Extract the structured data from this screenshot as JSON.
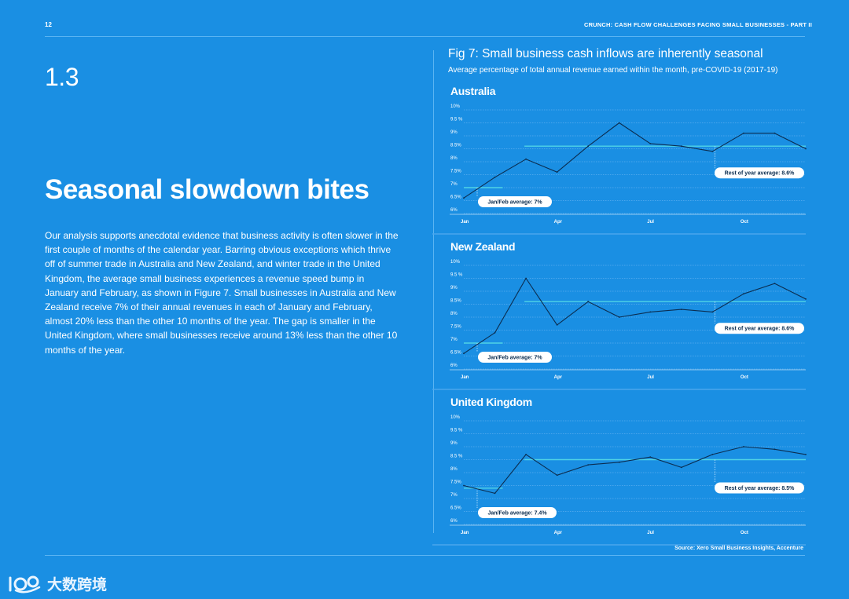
{
  "header": {
    "page_number": "12",
    "running_title": "CRUNCH: CASH FLOW CHALLENGES FACING SMALL BUSINESSES - PART II"
  },
  "section": {
    "number": "1.3",
    "headline": "Seasonal slowdown bites",
    "body": "Our analysis supports anecdotal evidence that business activity is often slower in the first couple of months of the calendar year. Barring obvious exceptions which thrive off of summer trade in Australia and New Zealand, and winter trade in the United Kingdom, the average small business experiences a revenue speed bump in January and February, as shown in Figure 7. Small businesses in Australia and New Zealand receive 7% of their annual revenues in each of January and February, almost 20% less than the other 10 months of the year. The gap is smaller in the United Kingdom, where small businesses receive around 13% less than the other 10 months of the year."
  },
  "figure": {
    "title": "Fig 7: Small business cash inflows are inherently seasonal",
    "subtitle": "Average percentage of total annual revenue earned within the month, pre-COVID-19 (2017-19)",
    "source": "Source: Xero Small Business Insights, Accenture"
  },
  "colors": {
    "background": "#1a8fe3",
    "line": "#0b2d50",
    "avg_line": "#4fd3e6",
    "grid": "#4aa6ec"
  },
  "chart_data": [
    {
      "type": "line",
      "title": "Australia",
      "x": [
        "Jan",
        "Feb",
        "Mar",
        "Apr",
        "May",
        "Jun",
        "Jul",
        "Aug",
        "Sep",
        "Oct",
        "Nov",
        "Dec"
      ],
      "x_tick_labels": [
        "Jan",
        "Apr",
        "Jul",
        "Oct"
      ],
      "y_tick_labels": [
        "6%",
        "6.5%",
        "7%",
        "7.5%",
        "8%",
        "8.5%",
        "9%",
        "9.5 %",
        "10%"
      ],
      "ylim": [
        6,
        10
      ],
      "values": [
        6.6,
        7.4,
        8.1,
        7.6,
        8.6,
        9.5,
        8.7,
        8.6,
        8.4,
        9.1,
        9.1,
        8.5
      ],
      "jan_feb_average": 7.0,
      "rest_of_year_average": 8.6,
      "labels": {
        "jan_feb": "Jan/Feb average: 7%",
        "rest": "Rest of year average: 8.6%"
      }
    },
    {
      "type": "line",
      "title": "New Zealand",
      "x": [
        "Jan",
        "Feb",
        "Mar",
        "Apr",
        "May",
        "Jun",
        "Jul",
        "Aug",
        "Sep",
        "Oct",
        "Nov",
        "Dec"
      ],
      "x_tick_labels": [
        "Jan",
        "Apr",
        "Jul",
        "Oct"
      ],
      "y_tick_labels": [
        "6%",
        "6.5%",
        "7%",
        "7.5%",
        "8%",
        "8.5%",
        "9%",
        "9.5 %",
        "10%"
      ],
      "ylim": [
        6,
        10
      ],
      "values": [
        6.6,
        7.4,
        9.5,
        7.7,
        8.6,
        8.0,
        8.2,
        8.3,
        8.2,
        8.9,
        9.3,
        8.7
      ],
      "jan_feb_average": 7.0,
      "rest_of_year_average": 8.6,
      "labels": {
        "jan_feb": "Jan/Feb average: 7%",
        "rest": "Rest of year average: 8.6%"
      }
    },
    {
      "type": "line",
      "title": "United Kingdom",
      "x": [
        "Jan",
        "Feb",
        "Mar",
        "Apr",
        "May",
        "Jun",
        "Jul",
        "Aug",
        "Sep",
        "Oct",
        "Nov",
        "Dec"
      ],
      "x_tick_labels": [
        "Jan",
        "Apr",
        "Jul",
        "Oct"
      ],
      "y_tick_labels": [
        "6%",
        "6.5%",
        "7%",
        "7.5%",
        "8%",
        "8.5 %",
        "9%",
        "9.5 %",
        "10%"
      ],
      "ylim": [
        6,
        10
      ],
      "values": [
        7.5,
        7.2,
        8.7,
        7.9,
        8.3,
        8.4,
        8.6,
        8.2,
        8.7,
        9.0,
        8.9,
        8.7
      ],
      "jan_feb_average": 7.4,
      "rest_of_year_average": 8.5,
      "labels": {
        "jan_feb": "Jan/Feb average: 7.4%",
        "rest": "Rest of year average: 8.5%"
      }
    }
  ],
  "watermark": {
    "text": "大数跨境"
  }
}
